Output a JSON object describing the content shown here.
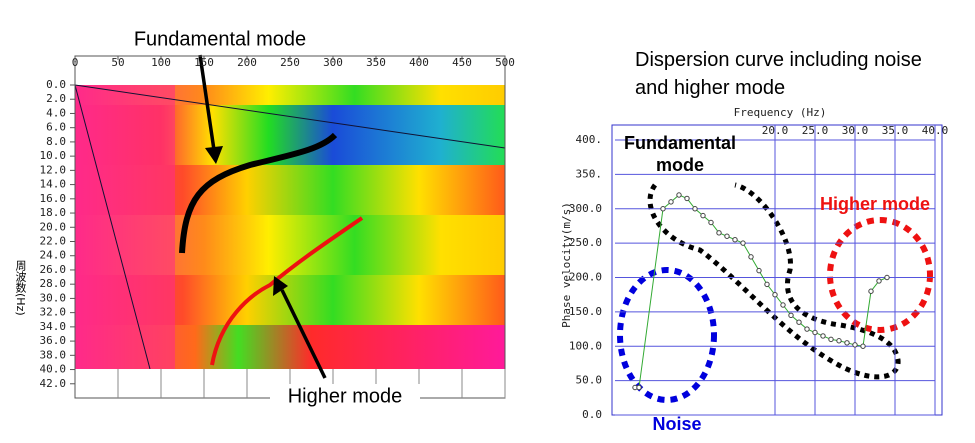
{
  "chart_data": [
    {
      "type": "heatmap",
      "ylabel": "周波数(Hz)",
      "annotations": [
        "Fundamental mode",
        "Higher mode"
      ],
      "xlim": [
        0,
        500
      ],
      "xticks": [
        0,
        50,
        100,
        150,
        200,
        250,
        300,
        350,
        400,
        450,
        500
      ],
      "ylim": [
        0,
        44
      ],
      "yticks": [
        {
          "value": 0,
          "label": "0.0"
        },
        {
          "value": 2,
          "label": "2.0"
        },
        {
          "value": 4,
          "label": "4.0"
        },
        {
          "value": 6,
          "label": "6.0"
        },
        {
          "value": 8,
          "label": "8.0"
        },
        {
          "value": 10,
          "label": "10.0"
        },
        {
          "value": 12,
          "label": "12.0"
        },
        {
          "value": 14,
          "label": "14.0"
        },
        {
          "value": 16,
          "label": "16.0"
        },
        {
          "value": 18,
          "label": "18.0"
        },
        {
          "value": 20,
          "label": "20.0"
        },
        {
          "value": 22,
          "label": "22.0"
        },
        {
          "value": 24,
          "label": "24.0"
        },
        {
          "value": 26,
          "label": "26.0"
        },
        {
          "value": 28,
          "label": "28.0"
        },
        {
          "value": 30,
          "label": "30.0"
        },
        {
          "value": 32,
          "label": "32.0"
        },
        {
          "value": 34,
          "label": "34.0"
        },
        {
          "value": 36,
          "label": "36.0"
        },
        {
          "value": 38,
          "label": "38.0"
        },
        {
          "value": 40,
          "label": "40.0"
        },
        {
          "value": 42,
          "label": "42.0"
        }
      ]
    },
    {
      "type": "line",
      "title": "Dispersion curve including noise and higher mode",
      "xlabel": "Frequency (Hz)",
      "ylabel": "Phase velocity(m/s)",
      "annotations": [
        "Fundamental mode",
        "Higher mode",
        "Noise"
      ],
      "xlim": [
        0,
        40
      ],
      "xticks": [
        {
          "value": 20,
          "label": "20.0"
        },
        {
          "value": 25,
          "label": "25.0"
        },
        {
          "value": 30,
          "label": "30.0"
        },
        {
          "value": 35,
          "label": "35.0"
        },
        {
          "value": 40,
          "label": "40.0"
        }
      ],
      "ylim": [
        0,
        400
      ],
      "yticks": [
        {
          "value": 0,
          "label": "0.0"
        },
        {
          "value": 50,
          "label": "50.0"
        },
        {
          "value": 100,
          "label": "100.0"
        },
        {
          "value": 150,
          "label": "150.0"
        },
        {
          "value": 200,
          "label": "200.0"
        },
        {
          "value": 250,
          "label": "250.0"
        },
        {
          "value": 300,
          "label": "300.0"
        },
        {
          "value": 350,
          "label": "350."
        },
        {
          "value": 400,
          "label": "400."
        }
      ],
      "grid": true,
      "color": "#33aa33",
      "marker_color": "#444444",
      "x": [
        2.5,
        3.0,
        6,
        7,
        8,
        9,
        10,
        11,
        12,
        13,
        14,
        15,
        16,
        17,
        18,
        19,
        20,
        21,
        22,
        23,
        24,
        25,
        26,
        27,
        28,
        29,
        30,
        31,
        32,
        33,
        34
      ],
      "values": [
        40,
        40,
        300,
        310,
        320,
        315,
        300,
        290,
        280,
        265,
        260,
        255,
        250,
        230,
        210,
        190,
        175,
        160,
        145,
        135,
        125,
        120,
        115,
        110,
        108,
        105,
        102,
        100,
        180,
        195,
        200
      ]
    }
  ]
}
